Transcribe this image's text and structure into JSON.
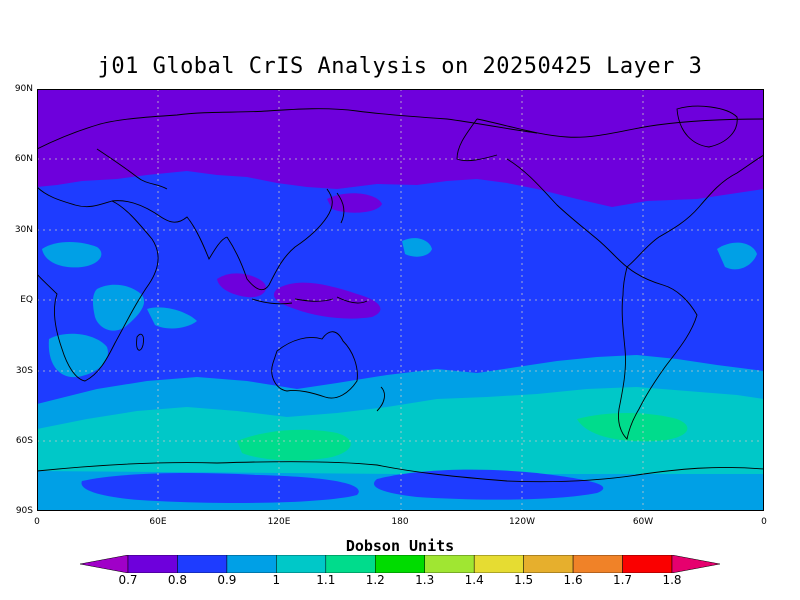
{
  "title": "j01 Global CrIS Analysis on 20250425 Layer 3",
  "units_label": "Dobson Units",
  "y_axis_labels": [
    "90N",
    "60N",
    "30N",
    "EQ",
    "30S",
    "60S",
    "90S"
  ],
  "x_axis_labels": [
    "0",
    "60E",
    "120E",
    "180",
    "120W",
    "60W",
    "0"
  ],
  "colorbar": {
    "labels": [
      "0.7",
      "0.8",
      "0.9",
      "1",
      "1.1",
      "1.2",
      "1.3",
      "1.4",
      "1.5",
      "1.6",
      "1.7",
      "1.8"
    ],
    "colors": [
      "#a000c8",
      "#6e00dc",
      "#1e3cff",
      "#00a0e6",
      "#00c8c8",
      "#00dc8c",
      "#00dc00",
      "#a0e632",
      "#e6dc32",
      "#e6af2d",
      "#f08228",
      "#fa0000",
      "#e6006e"
    ]
  },
  "map_colors": {
    "violet": "#6e00dc",
    "blue": "#1e3cff",
    "lightblue": "#00a0e6",
    "cyan": "#00c8c8",
    "seagreen": "#00dc8c",
    "magenta": "#a000c8"
  }
}
